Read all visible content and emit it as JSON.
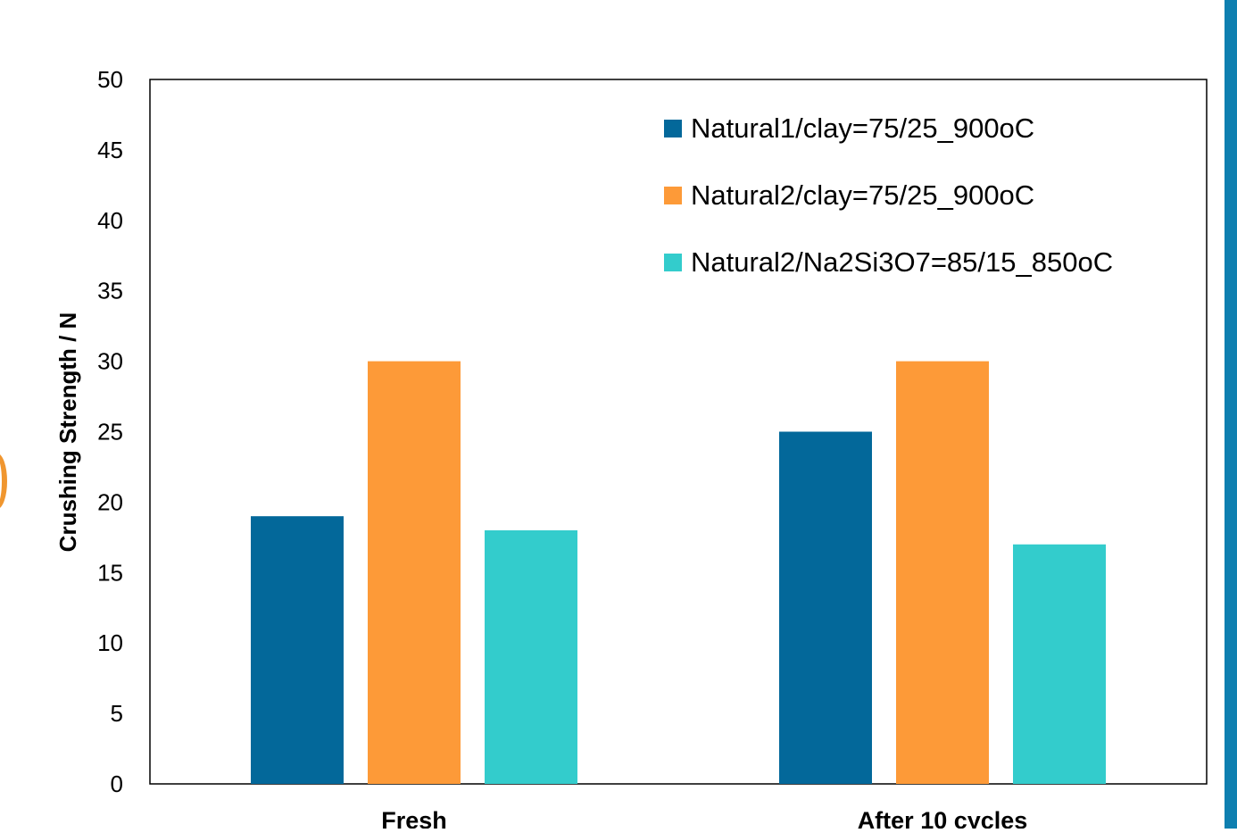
{
  "chart_data": {
    "type": "bar",
    "categories": [
      "Fresh",
      "After 10 cycles"
    ],
    "series": [
      {
        "name": "Natural1/clay=75/25_900oC",
        "values": [
          19,
          25
        ],
        "color": "#03689a"
      },
      {
        "name": "Natural2/clay=75/25_900oC",
        "values": [
          30,
          30
        ],
        "color": "#fd9a38"
      },
      {
        "name": "Natural2/Na2Si3O7=85/15_850oC",
        "values": [
          18,
          17
        ],
        "color": "#33cccc"
      }
    ],
    "xlabel": "",
    "ylabel": "Crushing Strength / N",
    "ylim": [
      0,
      50
    ],
    "yticks": [
      0,
      5,
      10,
      15,
      20,
      25,
      30,
      35,
      40,
      45,
      50
    ],
    "grid": false,
    "legend_position": "top-right"
  },
  "decor": {
    "right_strip_color": "#0e7fb0",
    "left_fragment_color": "#f0962f"
  }
}
